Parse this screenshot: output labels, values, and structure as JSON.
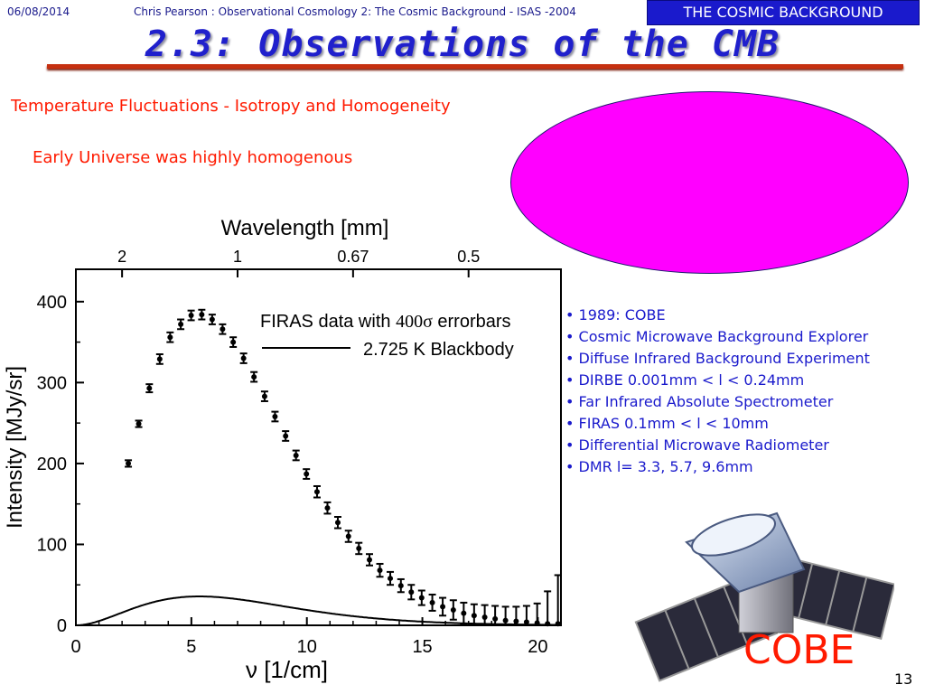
{
  "header": {
    "date": "06/08/2014",
    "author_line": "Chris Pearson :   Observational Cosmology 2: The Cosmic Background - ISAS -2004",
    "section_badge": "THE COSMIC BACKGROUND"
  },
  "title": "2.3: Observations of the CMB",
  "subtitle": "Temperature Fluctuations - Isotropy and Homogeneity",
  "early_universe": "Early Universe was highly homogenous",
  "bullets": [
    "• 1989: COBE",
    "• Cosmic Microwave Background Explorer",
    "• Diffuse Infrared Background Experiment",
    "• DIRBE 0.001mm < l < 0.24mm",
    "• Far Infrared Absolute Spectrometer",
    "• FIRAS 0.1mm < l < 10mm",
    "• Differential Microwave Radiometer",
    "• DMR l= 3.3, 5.7, 9.6mm"
  ],
  "cobe_label": "COBE",
  "slide_number": "13",
  "colors": {
    "accent_red": "#ff1a00",
    "title_blue": "#2020cc",
    "ellipse_magenta": "#ff00ff",
    "rule": "#c63010"
  },
  "chart_data": {
    "type": "scatter",
    "xlabel": "ν  [1/cm]",
    "ylabel": "Intensity [MJy/sr]",
    "top_axis_label": "Wavelength [mm]",
    "top_ticks": [
      {
        "label": "2",
        "x": 2
      },
      {
        "label": "1",
        "x": 7
      },
      {
        "label": "0.67",
        "x": 12
      },
      {
        "label": "0.5",
        "x": 17
      }
    ],
    "xlim": [
      0,
      21
    ],
    "ylim": [
      0,
      440
    ],
    "xticks": [
      0,
      5,
      10,
      15,
      20
    ],
    "yticks": [
      0,
      100,
      200,
      300,
      400
    ],
    "grid": false,
    "legend": [
      {
        "label_prefix": "FIRAS data with ",
        "label_math": "400σ",
        "label_suffix": " errorbars",
        "kind": "points"
      },
      {
        "label": "2.725 K Blackbody",
        "kind": "line"
      }
    ],
    "series": [
      {
        "name": "FIRAS data",
        "x": [
          2.27,
          2.72,
          3.18,
          3.63,
          4.08,
          4.54,
          4.99,
          5.45,
          5.9,
          6.35,
          6.81,
          7.26,
          7.71,
          8.17,
          8.62,
          9.08,
          9.53,
          9.98,
          10.44,
          10.89,
          11.34,
          11.8,
          12.25,
          12.71,
          13.16,
          13.61,
          14.07,
          14.52,
          14.97,
          15.43,
          15.88,
          16.34,
          16.79,
          17.24,
          17.7,
          18.15,
          18.6,
          19.06,
          19.51,
          19.97,
          20.42,
          20.87
        ],
        "y": [
          200,
          249,
          293,
          329,
          356,
          372,
          383,
          384,
          378,
          366,
          350,
          330,
          307,
          283,
          258,
          234,
          210,
          187,
          165,
          145,
          127,
          110,
          95,
          81,
          68,
          58,
          49,
          41,
          34,
          28,
          23,
          19,
          15,
          12,
          10,
          8,
          6,
          5,
          4,
          3,
          2,
          2
        ],
        "errors": [
          4,
          4,
          5,
          6,
          6,
          6,
          6,
          6,
          6,
          6,
          6,
          6,
          6,
          6,
          6,
          6,
          6,
          6,
          7,
          7,
          7,
          7,
          7,
          7,
          8,
          8,
          8,
          9,
          9,
          10,
          11,
          12,
          13,
          14,
          15,
          16,
          17,
          18,
          20,
          24,
          40,
          60
        ]
      },
      {
        "name": "2.725 K Blackbody",
        "temperature_K": 2.725,
        "x_range": [
          0,
          21
        ]
      }
    ]
  }
}
